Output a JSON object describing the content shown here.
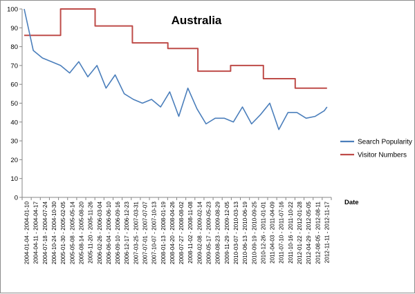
{
  "chart_data": {
    "type": "line",
    "title": "Australia",
    "xlabel": "Date",
    "ylabel": "",
    "ylim": [
      0,
      100
    ],
    "yticks": [
      0,
      10,
      20,
      30,
      40,
      50,
      60,
      70,
      80,
      90,
      100
    ],
    "grid": false,
    "legend_position": "right",
    "x_tick_labels": [
      "2004-01-04 - 2004-01-10",
      "2004-04-11 - 2004-04-17",
      "2004-07-18 - 2004-07-24",
      "2004-10-24 - 2004-10-30",
      "2005-01-30 - 2005-02-05",
      "2005-05-08 - 2005-05-14",
      "2005-08-14 - 2005-08-20",
      "2005-11-20 - 2005-11-26",
      "2006-02-26 - 2006-03-04",
      "2006-06-04 - 2006-06-10",
      "2006-09-10 - 2006-09-16",
      "2006-12-17 - 2006-12-23",
      "2007-03-25 - 2007-03-31",
      "2007-07-01 - 2007-07-07",
      "2007-10-07 - 2007-10-13",
      "2008-01-13 - 2008-01-19",
      "2008-04-20 - 2008-04-26",
      "2008-07-27 - 2008-08-02",
      "2008-11-02 - 2008-11-08",
      "2009-02-08 - 2009-02-14",
      "2009-05-17 - 2009-05-23",
      "2009-08-23 - 2009-08-29",
      "2009-11-29 - 2009-12-05",
      "2010-03-07 - 2010-03-13",
      "2010-06-13 - 2010-06-19",
      "2010-09-19 - 2010-09-25",
      "2010-12-26 - 2011-01-01",
      "2011-04-03 - 2011-04-09",
      "2011-07-10 - 2011-07-16",
      "2011-10-16 - 2011-10-22",
      "2012-01-22 - 2012-01-28",
      "2012-04-29 - 2012-05-05",
      "2012-08-05 - 2012-08-11",
      "2012-11-11 - 2012-11-17"
    ],
    "series": [
      {
        "name": "Search Popularity",
        "color": "#4a7ebb",
        "x": [
          0,
          1,
          2,
          3,
          4,
          5,
          6,
          7,
          8,
          9,
          10,
          11,
          12,
          13,
          14,
          15,
          16,
          17,
          18,
          19,
          20,
          21,
          22,
          23,
          24,
          25,
          26,
          27,
          28,
          29,
          30,
          31,
          32,
          33,
          33.3
        ],
        "values": [
          100,
          78,
          74,
          72,
          70,
          66,
          72,
          64,
          70,
          58,
          65,
          55,
          52,
          50,
          52,
          48,
          56,
          43,
          58,
          47,
          39,
          42,
          42,
          40,
          48,
          39,
          44,
          50,
          36,
          45,
          45,
          42,
          43,
          46,
          48
        ]
      },
      {
        "name": "Visitor Numbers",
        "color": "#be4b48",
        "x": [
          0,
          4,
          4,
          7.8,
          7.8,
          11.9,
          11.9,
          15.8,
          15.8,
          19.1,
          19.1,
          22.7,
          22.7,
          26.3,
          26.3,
          29.8,
          29.8,
          33.3
        ],
        "values": [
          86,
          86,
          100,
          100,
          91,
          91,
          82,
          82,
          79,
          79,
          67,
          67,
          70,
          70,
          63,
          63,
          58,
          58
        ]
      }
    ]
  }
}
